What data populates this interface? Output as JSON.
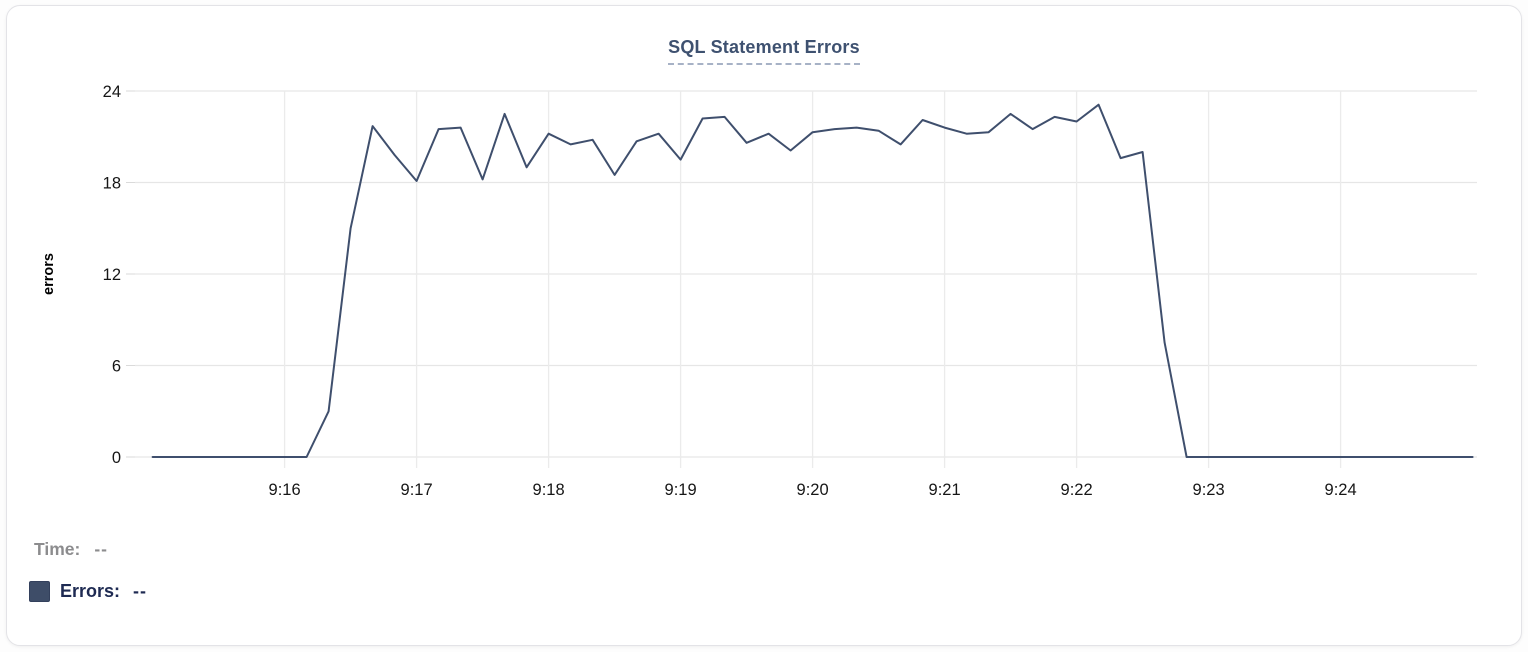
{
  "card": {
    "title": "SQL Statement Errors"
  },
  "chart_data": {
    "type": "line",
    "title": "SQL Statement Errors",
    "xlabel": "",
    "ylabel": "errors",
    "x_ticks": [
      "9:16",
      "9:17",
      "9:18",
      "9:19",
      "9:20",
      "9:21",
      "9:22",
      "9:23",
      "9:24"
    ],
    "y_ticks": [
      0,
      6,
      12,
      18,
      24
    ],
    "ylim": [
      0,
      24
    ],
    "x_range": [
      "9:15:00",
      "9:25:00"
    ],
    "grid": true,
    "legend_position": "below-left",
    "series": [
      {
        "name": "Errors",
        "color": "#3f4f6d",
        "times": [
          "9:15:00",
          "9:15:10",
          "9:15:20",
          "9:15:30",
          "9:15:40",
          "9:15:50",
          "9:16:00",
          "9:16:10",
          "9:16:20",
          "9:16:30",
          "9:16:40",
          "9:16:50",
          "9:17:00",
          "9:17:10",
          "9:17:20",
          "9:17:30",
          "9:17:40",
          "9:17:50",
          "9:18:00",
          "9:18:10",
          "9:18:20",
          "9:18:30",
          "9:18:40",
          "9:18:50",
          "9:19:00",
          "9:19:10",
          "9:19:20",
          "9:19:30",
          "9:19:40",
          "9:19:50",
          "9:20:00",
          "9:20:10",
          "9:20:20",
          "9:20:30",
          "9:20:40",
          "9:20:50",
          "9:21:00",
          "9:21:10",
          "9:21:20",
          "9:21:30",
          "9:21:40",
          "9:21:50",
          "9:22:00",
          "9:22:10",
          "9:22:20",
          "9:22:30",
          "9:22:40",
          "9:22:50",
          "9:23:00",
          "9:23:10",
          "9:23:20",
          "9:23:30",
          "9:23:40",
          "9:23:50",
          "9:24:00",
          "9:24:10",
          "9:24:20",
          "9:24:30",
          "9:24:40",
          "9:24:50",
          "9:25:00"
        ],
        "values": [
          0,
          0,
          0,
          0,
          0,
          0,
          0,
          0,
          3,
          15,
          21.7,
          19.8,
          18.1,
          21.5,
          21.6,
          18.2,
          22.5,
          19.0,
          21.2,
          20.5,
          20.8,
          18.5,
          20.7,
          21.2,
          19.5,
          22.2,
          22.3,
          20.6,
          21.2,
          20.1,
          21.3,
          21.5,
          21.6,
          21.4,
          20.5,
          22.1,
          21.6,
          21.2,
          21.3,
          22.5,
          21.5,
          22.3,
          22.0,
          23.1,
          19.6,
          20.0,
          7.5,
          0,
          0,
          0,
          0,
          0,
          0,
          0,
          0,
          0,
          0,
          0,
          0,
          0,
          0
        ]
      }
    ]
  },
  "hover_readout": {
    "time_label": "Time:",
    "time_value": "--",
    "errors_label": "Errors:",
    "errors_value": "--",
    "swatch_color": "#3e4d68"
  },
  "colors": {
    "line": "#3f4f6d",
    "grid_horizontal": "#e6e6e6",
    "grid_vertical": "#ebebeb",
    "tick_text": "#161616",
    "axis_title": "#000000",
    "title_text": "#3e5170"
  }
}
